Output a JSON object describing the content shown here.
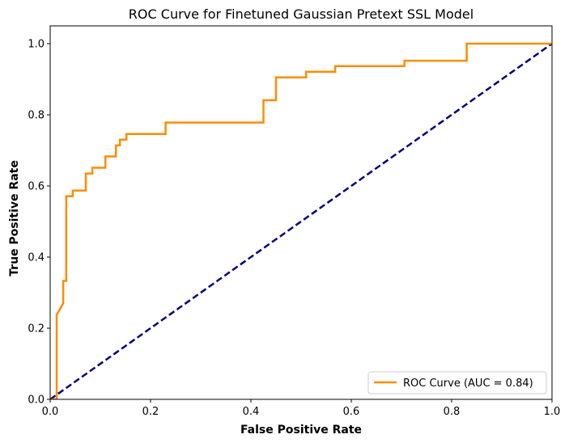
{
  "chart_data": {
    "type": "line",
    "title": "ROC Curve for Finetuned Gaussian Pretext SSL Model",
    "xlabel": "False Positive Rate",
    "ylabel": "True Positive Rate",
    "xlim": [
      0.0,
      1.0
    ],
    "ylim": [
      0.0,
      1.05
    ],
    "x_ticks": [
      "0.0",
      "0.2",
      "0.4",
      "0.6",
      "0.8",
      "1.0"
    ],
    "y_ticks": [
      "0.0",
      "0.2",
      "0.4",
      "0.6",
      "0.8",
      "1.0"
    ],
    "grid": false,
    "legend_position": "lower-right",
    "series": [
      {
        "name": "ROC Curve (AUC = 0.84)",
        "color": "#ff8c00",
        "style": "solid",
        "x": [
          0.0,
          0.013,
          0.013,
          0.013,
          0.026,
          0.026,
          0.032,
          0.032,
          0.045,
          0.045,
          0.071,
          0.071,
          0.084,
          0.084,
          0.11,
          0.11,
          0.131,
          0.131,
          0.139,
          0.139,
          0.152,
          0.152,
          0.23,
          0.23,
          0.425,
          0.425,
          0.45,
          0.45,
          0.51,
          0.51,
          0.568,
          0.568,
          0.706,
          0.706,
          0.83,
          0.83,
          1.0
        ],
        "y": [
          0.0,
          0.0,
          0.238,
          0.238,
          0.27,
          0.333,
          0.333,
          0.571,
          0.571,
          0.587,
          0.587,
          0.635,
          0.635,
          0.651,
          0.651,
          0.683,
          0.683,
          0.714,
          0.714,
          0.73,
          0.73,
          0.746,
          0.746,
          0.778,
          0.778,
          0.841,
          0.841,
          0.905,
          0.905,
          0.921,
          0.921,
          0.937,
          0.937,
          0.952,
          0.952,
          1.0,
          1.0
        ]
      },
      {
        "color": "#000080",
        "style": "dashed",
        "x": [
          0.0,
          1.0
        ],
        "y": [
          0.0,
          1.0
        ]
      }
    ]
  }
}
